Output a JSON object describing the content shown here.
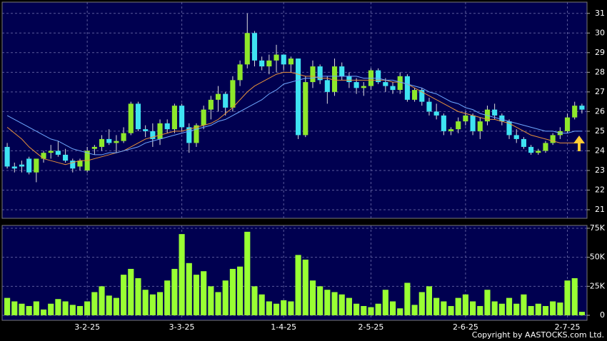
{
  "chart_data": [
    {
      "type": "candlestick",
      "open": [
        24.2,
        23.2,
        23.3,
        23.6,
        22.9,
        23.6,
        23.9,
        24.0,
        23.8,
        23.5,
        23.2,
        23.0,
        24.1,
        24.2,
        24.6,
        24.4,
        24.5,
        24.9,
        26.4,
        25.1,
        25.0,
        24.6,
        25.4,
        25.1,
        26.3,
        25.2,
        24.4,
        25.3,
        26.1,
        26.6,
        26.9,
        26.2,
        27.6,
        28.4,
        30.0,
        28.6,
        28.3,
        28.6,
        28.9,
        28.4,
        28.7,
        24.8,
        27.5,
        28.3,
        27.6,
        27.0,
        28.3,
        27.8,
        27.5,
        27.2,
        27.3,
        28.1,
        27.5,
        27.3,
        27.1,
        27.8,
        26.6,
        27.1,
        26.5,
        26.0,
        25.8,
        25.0,
        25.1,
        25.5,
        25.8,
        25.0,
        25.5,
        26.1,
        25.8,
        25.5,
        24.8,
        24.6,
        24.2,
        23.9,
        24.0,
        24.4,
        24.8,
        25.0,
        25.7,
        26.3
      ],
      "high": [
        24.4,
        23.4,
        23.5,
        23.7,
        23.6,
        24.0,
        24.3,
        24.5,
        24.1,
        23.6,
        23.6,
        24.2,
        24.3,
        24.8,
        25.1,
        24.8,
        25.2,
        26.5,
        26.5,
        25.3,
        25.4,
        25.6,
        25.6,
        26.4,
        26.4,
        25.4,
        25.4,
        26.3,
        26.8,
        27.3,
        27.0,
        27.8,
        28.6,
        31.0,
        30.1,
        28.8,
        28.9,
        29.4,
        28.9,
        28.8,
        28.7,
        27.8,
        28.6,
        28.4,
        27.8,
        28.7,
        28.5,
        28.0,
        27.7,
        27.5,
        28.2,
        28.2,
        27.7,
        27.5,
        28.0,
        27.9,
        27.2,
        27.2,
        26.7,
        26.4,
        25.9,
        25.2,
        25.7,
        26.0,
        25.9,
        25.7,
        26.3,
        26.4,
        25.9,
        25.6,
        25.1,
        24.7,
        24.3,
        24.1,
        24.5,
        24.9,
        25.2,
        25.9,
        26.5,
        26.4
      ],
      "low": [
        23.1,
        22.9,
        22.9,
        22.8,
        22.4,
        23.4,
        23.6,
        23.7,
        23.4,
        22.9,
        23.0,
        22.9,
        23.8,
        24.0,
        24.3,
        23.9,
        24.4,
        24.8,
        25.0,
        24.7,
        24.2,
        24.3,
        24.9,
        24.9,
        25.0,
        23.9,
        24.2,
        25.1,
        25.6,
        26.0,
        25.8,
        26.0,
        27.3,
        28.2,
        28.3,
        28.1,
        27.9,
        28.0,
        28.1,
        28.0,
        24.6,
        24.7,
        27.2,
        27.4,
        26.4,
        26.8,
        27.6,
        27.2,
        26.9,
        26.8,
        27.1,
        27.4,
        27.0,
        26.9,
        26.9,
        26.5,
        26.5,
        26.3,
        25.8,
        25.6,
        24.8,
        24.8,
        24.9,
        25.3,
        24.8,
        24.6,
        25.3,
        25.6,
        25.3,
        24.6,
        24.4,
        24.1,
        23.8,
        23.8,
        23.9,
        24.3,
        24.6,
        24.9,
        25.6,
        25.9
      ],
      "close": [
        23.2,
        23.1,
        23.2,
        22.9,
        23.6,
        23.9,
        24.0,
        23.8,
        23.5,
        23.1,
        23.5,
        24.0,
        24.2,
        24.6,
        24.4,
        24.5,
        24.9,
        26.4,
        25.1,
        25.0,
        24.6,
        25.4,
        25.1,
        26.3,
        25.2,
        24.4,
        25.3,
        26.1,
        26.6,
        26.9,
        26.2,
        27.6,
        28.4,
        30.0,
        28.6,
        28.3,
        28.6,
        28.9,
        28.4,
        28.7,
        24.8,
        27.5,
        28.3,
        27.6,
        27.0,
        28.3,
        27.8,
        27.5,
        27.2,
        27.3,
        28.1,
        27.5,
        27.3,
        27.1,
        27.8,
        26.6,
        27.1,
        26.5,
        26.0,
        25.8,
        25.0,
        25.1,
        25.5,
        25.8,
        25.0,
        25.5,
        26.1,
        25.8,
        25.5,
        24.8,
        24.6,
        24.2,
        23.9,
        24.0,
        24.4,
        24.8,
        25.0,
        25.7,
        26.3,
        26.1
      ],
      "up_color": "#8ee82b",
      "down_color": "#3fe3f2",
      "series": [
        {
          "color": "#e8923a",
          "values": [
            25.2,
            24.9,
            24.6,
            24.2,
            23.9,
            23.6,
            23.5,
            23.4,
            23.3,
            23.4,
            23.5,
            23.5,
            23.6,
            23.7,
            23.8,
            23.9,
            24.0,
            24.2,
            24.4,
            24.6,
            24.7,
            24.8,
            24.9,
            25.0,
            25.0,
            25.1,
            25.2,
            25.3,
            25.4,
            25.6,
            25.9,
            26.2,
            26.6,
            27.0,
            27.3,
            27.5,
            27.7,
            27.9,
            28.0,
            28.0,
            27.9,
            27.8,
            27.8,
            27.7,
            27.7,
            27.6,
            27.6,
            27.6,
            27.6,
            27.6,
            27.6,
            27.6,
            27.6,
            27.5,
            27.5,
            27.4,
            27.2,
            27.0,
            26.8,
            26.6,
            26.4,
            26.2,
            26.0,
            25.9,
            25.8,
            25.7,
            25.6,
            25.6,
            25.5,
            25.4,
            25.2,
            25.0,
            24.8,
            24.7,
            24.6,
            24.5,
            24.4,
            24.4,
            24.4,
            24.5
          ]
        },
        {
          "color": "#6fa8ff",
          "values": [
            25.8,
            25.6,
            25.4,
            25.2,
            25.0,
            24.8,
            24.6,
            24.5,
            24.3,
            24.1,
            24.0,
            23.9,
            23.8,
            23.8,
            23.9,
            23.9,
            24.0,
            24.1,
            24.2,
            24.4,
            24.5,
            24.6,
            24.7,
            24.8,
            24.9,
            25.0,
            25.1,
            25.2,
            25.3,
            25.5,
            25.6,
            25.8,
            26.0,
            26.2,
            26.4,
            26.6,
            26.9,
            27.1,
            27.4,
            27.5,
            27.6,
            27.7,
            27.7,
            27.8,
            27.8,
            27.8,
            27.8,
            27.8,
            27.8,
            27.7,
            27.7,
            27.7,
            27.6,
            27.6,
            27.5,
            27.4,
            27.3,
            27.2,
            27.0,
            26.9,
            26.7,
            26.5,
            26.4,
            26.2,
            26.1,
            25.9,
            25.8,
            25.7,
            25.6,
            25.5,
            25.4,
            25.3,
            25.2,
            25.1,
            25.0,
            25.0,
            24.9,
            24.9,
            25.0,
            25.0
          ]
        }
      ],
      "ylim": [
        20.6,
        31.5
      ],
      "yticks": [
        21,
        22,
        23,
        24,
        25,
        26,
        27,
        28,
        29,
        30,
        31
      ],
      "grid": true
    },
    {
      "type": "bar",
      "categories": [
        null,
        null,
        null,
        null,
        null,
        null,
        null,
        null,
        null,
        null,
        null,
        "3-2-25",
        null,
        null,
        null,
        null,
        null,
        null,
        null,
        null,
        null,
        null,
        null,
        null,
        "3-3-25",
        null,
        null,
        null,
        null,
        null,
        null,
        null,
        null,
        null,
        null,
        null,
        null,
        null,
        "1-4-25",
        null,
        null,
        null,
        null,
        null,
        null,
        null,
        null,
        null,
        null,
        null,
        "2-5-25",
        null,
        null,
        null,
        null,
        null,
        null,
        null,
        null,
        null,
        null,
        null,
        null,
        "2-6-25",
        null,
        null,
        null,
        null,
        null,
        null,
        null,
        null,
        null,
        null,
        null,
        null,
        null,
        "2-7-25",
        null,
        null
      ],
      "values": [
        15000,
        12000,
        10000,
        8000,
        12000,
        5000,
        10000,
        14000,
        12000,
        9000,
        8000,
        12000,
        20000,
        25000,
        17000,
        15000,
        35000,
        40000,
        32000,
        22000,
        18000,
        20000,
        30000,
        40000,
        70000,
        45000,
        35000,
        38000,
        25000,
        20000,
        30000,
        40000,
        42000,
        72000,
        25000,
        18000,
        12000,
        10000,
        13000,
        12000,
        52000,
        48000,
        30000,
        25000,
        22000,
        20000,
        18000,
        15000,
        10000,
        8000,
        7000,
        10000,
        22000,
        12000,
        6000,
        28000,
        9000,
        20000,
        25000,
        15000,
        12000,
        8000,
        15000,
        18000,
        12000,
        8000,
        22000,
        12000,
        10000,
        15000,
        10000,
        18000,
        8000,
        10000,
        8000,
        12000,
        11000,
        30000,
        32000,
        3000
      ],
      "color": "#99ff33",
      "ylim": [
        0,
        75000
      ],
      "yticks": [
        0,
        {
          "value": 25000,
          "label": "25K"
        },
        {
          "value": 50000,
          "label": "50K"
        },
        {
          "value": 75000,
          "label": "75K"
        }
      ],
      "grid": true
    }
  ],
  "footer": "Copyright by AASTOCKS.com Ltd."
}
